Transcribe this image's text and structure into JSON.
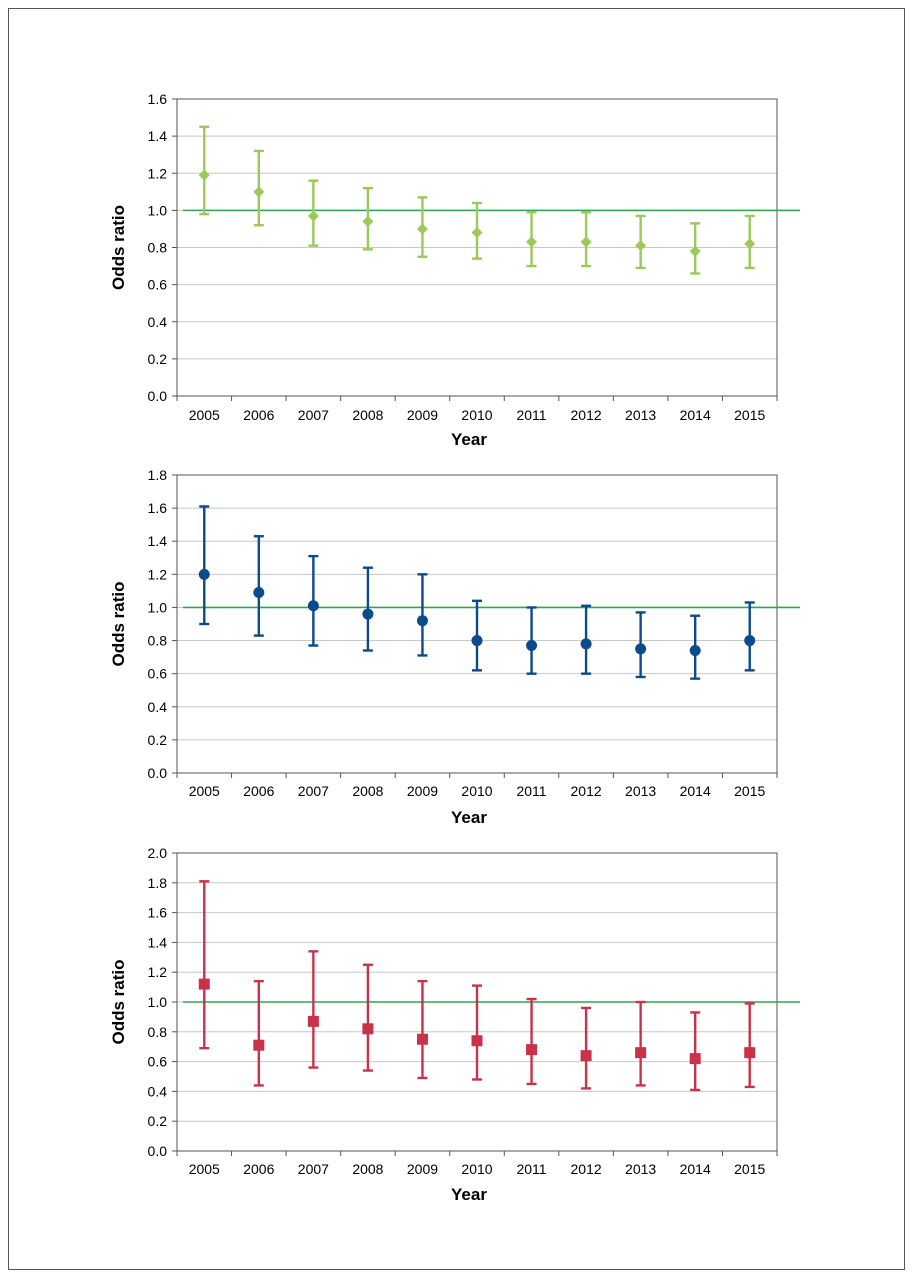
{
  "chart_data": [
    {
      "type": "scatter",
      "marker": "diamond",
      "color": "#9bc95a",
      "reference_line": 1.0,
      "reference_color": "#2aa84a",
      "xlabel": "Year",
      "ylabel": "Odds ratio",
      "ylim": [
        0,
        1.6
      ],
      "yticks": [
        "0.0",
        "0.2",
        "0.4",
        "0.6",
        "0.8",
        "1.0",
        "1.2",
        "1.4",
        "1.6"
      ],
      "categories": [
        "2005",
        "2006",
        "2007",
        "2008",
        "2009",
        "2010",
        "2011",
        "2012",
        "2013",
        "2014",
        "2015"
      ],
      "values": [
        1.19,
        1.1,
        0.97,
        0.94,
        0.9,
        0.88,
        0.83,
        0.83,
        0.81,
        0.78,
        0.82
      ],
      "lower": [
        0.98,
        0.92,
        0.81,
        0.79,
        0.75,
        0.74,
        0.7,
        0.7,
        0.69,
        0.66,
        0.69
      ],
      "upper": [
        1.45,
        1.32,
        1.16,
        1.12,
        1.07,
        1.04,
        0.99,
        0.99,
        0.97,
        0.93,
        0.97
      ],
      "grid": true
    },
    {
      "type": "scatter",
      "marker": "circle",
      "color": "#0b4a8b",
      "reference_line": 1.0,
      "reference_color": "#2aa84a",
      "xlabel": "Year",
      "ylabel": "Odds ratio",
      "ylim": [
        0,
        1.8
      ],
      "yticks": [
        "0.0",
        "0.2",
        "0.4",
        "0.6",
        "0.8",
        "1.0",
        "1.2",
        "1.4",
        "1.6",
        "1.8"
      ],
      "categories": [
        "2005",
        "2006",
        "2007",
        "2008",
        "2009",
        "2010",
        "2011",
        "2012",
        "2013",
        "2014",
        "2015"
      ],
      "values": [
        1.2,
        1.09,
        1.01,
        0.96,
        0.92,
        0.8,
        0.77,
        0.78,
        0.75,
        0.74,
        0.8
      ],
      "lower": [
        0.9,
        0.83,
        0.77,
        0.74,
        0.71,
        0.62,
        0.6,
        0.6,
        0.58,
        0.57,
        0.62
      ],
      "upper": [
        1.61,
        1.43,
        1.31,
        1.24,
        1.2,
        1.04,
        1.0,
        1.01,
        0.97,
        0.95,
        1.03
      ],
      "grid": true
    },
    {
      "type": "scatter",
      "marker": "square",
      "color": "#c8334a",
      "reference_line": 1.0,
      "reference_color": "#2aa84a",
      "xlabel": "Year",
      "ylabel": "Odds ratio",
      "ylim": [
        0,
        2.0
      ],
      "yticks": [
        "0.0",
        "0.2",
        "0.4",
        "0.6",
        "0.8",
        "1.0",
        "1.2",
        "1.4",
        "1.6",
        "1.8",
        "2.0"
      ],
      "categories": [
        "2005",
        "2006",
        "2007",
        "2008",
        "2009",
        "2010",
        "2011",
        "2012",
        "2013",
        "2014",
        "2015"
      ],
      "values": [
        1.12,
        0.71,
        0.87,
        0.82,
        0.75,
        0.74,
        0.68,
        0.64,
        0.66,
        0.62,
        0.66
      ],
      "lower": [
        0.69,
        0.44,
        0.56,
        0.54,
        0.49,
        0.48,
        0.45,
        0.42,
        0.44,
        0.41,
        0.43
      ],
      "upper": [
        1.81,
        1.14,
        1.34,
        1.25,
        1.14,
        1.11,
        1.02,
        0.96,
        1.0,
        0.93,
        0.99
      ],
      "grid": true
    }
  ]
}
